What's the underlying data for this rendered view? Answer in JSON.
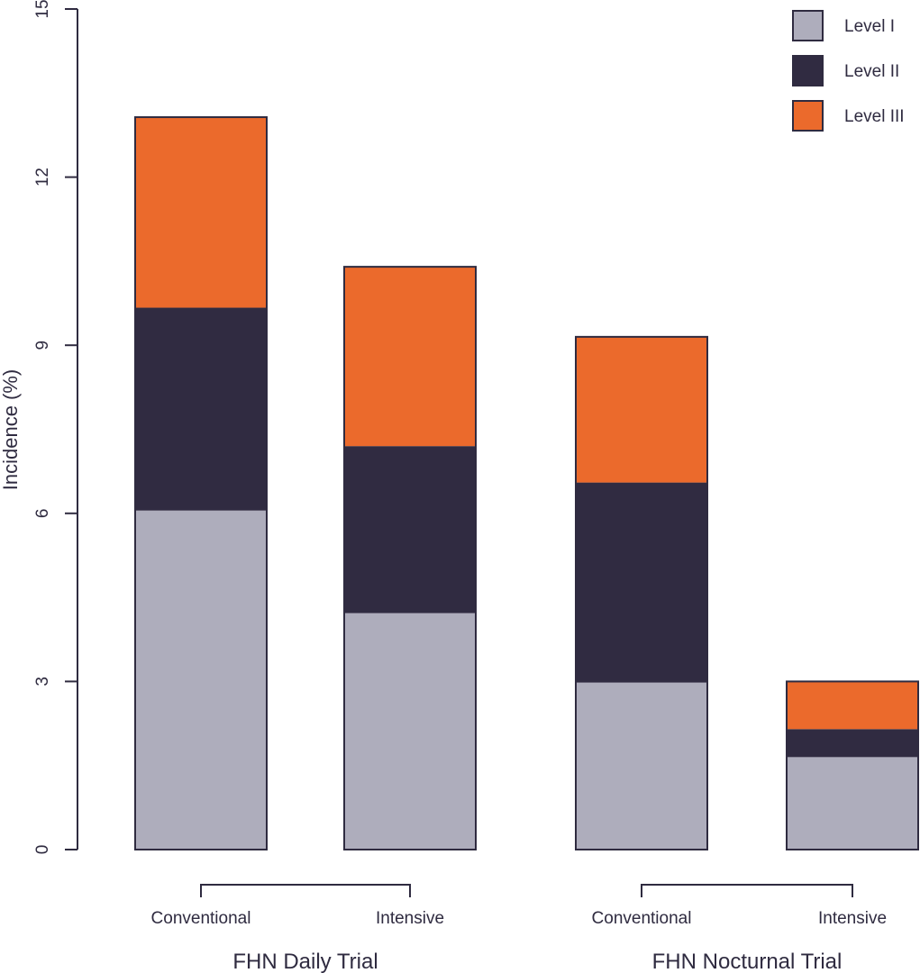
{
  "chart_data": {
    "type": "bar",
    "stacked": true,
    "ylabel": "Incidence (%)",
    "ylim": [
      0,
      15
    ],
    "yticks": [
      0,
      3,
      6,
      9,
      12,
      15
    ],
    "categories": [
      "Conventional",
      "Intensive",
      "Conventional",
      "Intensive"
    ],
    "groups": [
      {
        "label": "FHN Daily Trial",
        "members": [
          0,
          1
        ]
      },
      {
        "label": "FHN Nocturnal Trial",
        "members": [
          2,
          3
        ]
      }
    ],
    "series": [
      {
        "name": "Level I",
        "color": "#aeadbc",
        "values": [
          6.05,
          4.22,
          2.98,
          1.65
        ]
      },
      {
        "name": "Level II",
        "color": "#302b41",
        "values": [
          3.62,
          2.98,
          3.57,
          0.5
        ]
      },
      {
        "name": "Level III",
        "color": "#eb6a2c",
        "values": [
          3.4,
          3.2,
          2.6,
          0.85
        ]
      }
    ],
    "legend_position": "top-right",
    "grid": false
  }
}
